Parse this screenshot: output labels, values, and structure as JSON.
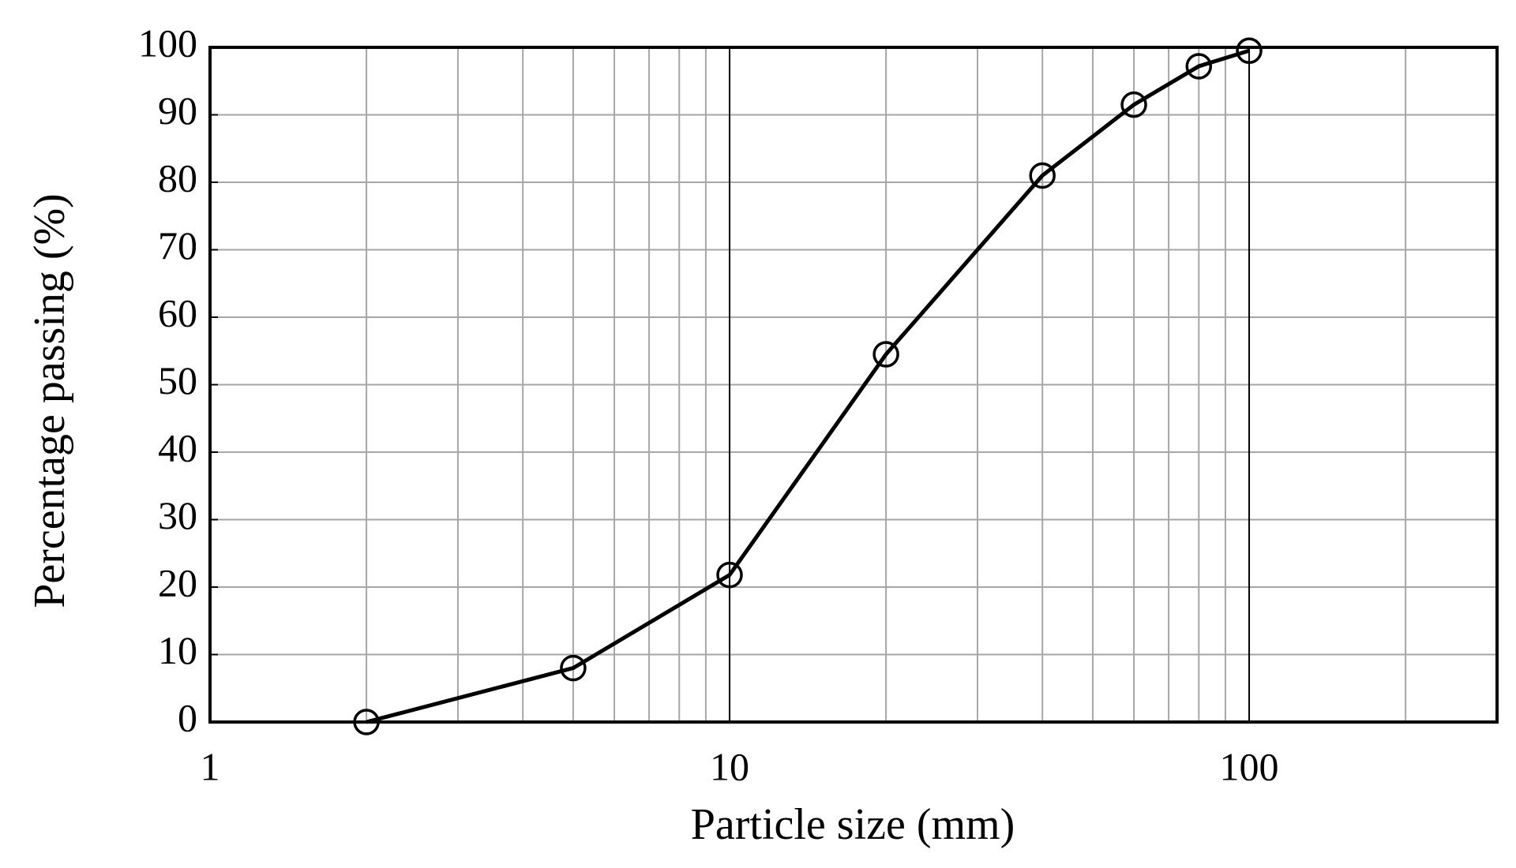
{
  "chart_data": {
    "type": "line",
    "x_label": "Particle size (mm)",
    "y_label": "Percentage passing (%)",
    "x": [
      2,
      5,
      10,
      20,
      40,
      60,
      80,
      100
    ],
    "series": [
      {
        "color": "#000000",
        "values": [
          0,
          8,
          21.8,
          54.5,
          81,
          91.5,
          97.2,
          99.5
        ]
      }
    ],
    "xscale": "log",
    "xlim": [
      1,
      300
    ],
    "xticks": [
      1,
      10,
      100
    ],
    "ylim": [
      0,
      100
    ],
    "yticks": [
      0,
      10,
      20,
      30,
      40,
      50,
      60,
      70,
      80,
      90,
      100
    ],
    "grid": true,
    "marker": "open-circle"
  }
}
